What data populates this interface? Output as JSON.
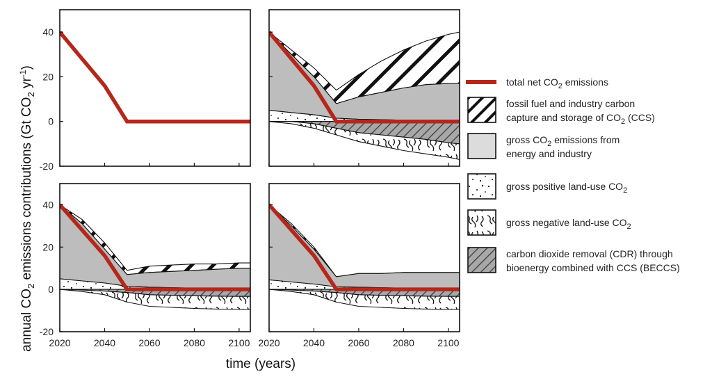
{
  "chart_data": {
    "type": "area",
    "xlabel": "time (years)",
    "ylabel": {
      "p1": "annual CO",
      "sub": "2",
      "p2": " emissions contributions (Gt CO",
      "sub2": "2",
      "p3": " yr",
      "sup": "-1",
      "p4": ")"
    },
    "xlim": [
      2020,
      2105
    ],
    "ylim": [
      -20,
      50
    ],
    "xticks": [
      "2020",
      "2040",
      "2060",
      "2080",
      "2100"
    ],
    "yticks": [
      "40",
      "20",
      "0",
      "-20"
    ],
    "colors": {
      "net": "#b5271b",
      "energy_fill": "#bdbdbd",
      "beccs_fill": "#a8a8a8",
      "white": "#ffffff"
    },
    "panels": [
      {
        "id": "top-left",
        "x": [
          2020,
          2030,
          2040,
          2050,
          2060,
          2070,
          2080,
          2090,
          2100,
          2105
        ],
        "net": [
          40,
          28,
          16,
          0,
          0,
          0,
          0,
          0,
          0,
          0
        ]
      },
      {
        "id": "top-right",
        "x": [
          2020,
          2030,
          2040,
          2050,
          2060,
          2070,
          2080,
          2090,
          2100,
          2105
        ],
        "gross_energy_top": [
          40,
          30,
          20,
          8,
          11,
          13,
          15,
          16.5,
          17,
          17
        ],
        "ccs_top": [
          40,
          32,
          24,
          14,
          21,
          27,
          32,
          36,
          39,
          40
        ],
        "land_pos_top": [
          5,
          4,
          3,
          1.5,
          1,
          0.8,
          0.6,
          0.5,
          0.4,
          0.4
        ],
        "beccs_bottom": [
          0,
          0,
          -1,
          -3,
          -5,
          -6,
          -7,
          -8,
          -9.5,
          -10
        ],
        "land_neg_bottom": [
          0,
          -1,
          -3,
          -6,
          -9,
          -11,
          -13,
          -14.5,
          -16,
          -17
        ],
        "net": [
          40,
          28,
          16,
          0,
          0,
          0,
          0,
          0,
          0,
          0
        ]
      },
      {
        "id": "bottom-left",
        "x": [
          2020,
          2030,
          2040,
          2050,
          2060,
          2070,
          2080,
          2090,
          2100,
          2105
        ],
        "gross_energy_top": [
          40,
          31,
          19,
          7,
          8,
          8.5,
          9,
          9.5,
          10,
          10
        ],
        "ccs_top": [
          40,
          33,
          22,
          9,
          11,
          11.5,
          12,
          12,
          12.5,
          12.5
        ],
        "land_pos_top": [
          5,
          4,
          3,
          1.5,
          1,
          0.8,
          0.6,
          0.5,
          0.4,
          0.4
        ],
        "beccs_bottom": [
          0,
          -0.3,
          -0.8,
          -1.5,
          -2.5,
          -2.8,
          -3,
          -3.2,
          -3.3,
          -3.3
        ],
        "land_neg_bottom": [
          0,
          -1,
          -2.5,
          -6,
          -8,
          -8.5,
          -9,
          -9.3,
          -9.5,
          -9.5
        ],
        "net": [
          40,
          28,
          16,
          0,
          0,
          0,
          0,
          0,
          0,
          0
        ]
      },
      {
        "id": "bottom-right",
        "x": [
          2020,
          2030,
          2040,
          2050,
          2060,
          2070,
          2080,
          2090,
          2100,
          2105
        ],
        "gross_energy_top": [
          40,
          30,
          19,
          6,
          7.5,
          7.5,
          8,
          8,
          8,
          8
        ],
        "ccs_top": [
          40,
          31,
          20,
          6,
          7.5,
          7.5,
          8,
          8,
          8,
          8
        ],
        "land_pos_top": [
          4.5,
          3.5,
          2.5,
          1.2,
          1,
          0.8,
          0.6,
          0.5,
          0.4,
          0.4
        ],
        "beccs_bottom": [
          0,
          -0.3,
          -0.8,
          -1.5,
          -2.5,
          -2.8,
          -3,
          -3.2,
          -3.3,
          -3.3
        ],
        "land_neg_bottom": [
          0,
          -1,
          -2.5,
          -6,
          -8,
          -8.5,
          -9,
          -9.3,
          -9.5,
          -9.5
        ],
        "net": [
          40,
          28,
          16,
          0,
          0,
          0,
          0,
          0,
          0,
          0
        ]
      }
    ]
  },
  "legend": [
    {
      "key": "net",
      "label1": "total net CO",
      "sub1": "2",
      "label1b": " emissions",
      "label2": "",
      "sub2": "",
      "label2b": ""
    },
    {
      "key": "ccs",
      "label1": "fossil fuel and industry carbon",
      "sub1": "",
      "label1b": "",
      "label2": "capture and storage of CO",
      "sub2": "2",
      "label2b": " (CCS)"
    },
    {
      "key": "energy",
      "label1": "gross CO",
      "sub1": "2",
      "label1b": " emissions from",
      "label2": "energy and industry",
      "sub2": "",
      "label2b": ""
    },
    {
      "key": "landpos",
      "label1": "gross positive land-use CO",
      "sub1": "2",
      "label1b": "",
      "label2": "",
      "sub2": "",
      "label2b": ""
    },
    {
      "key": "landneg",
      "label1": "gross negative land-use CO",
      "sub1": "2",
      "label1b": "",
      "label2": "",
      "sub2": "",
      "label2b": ""
    },
    {
      "key": "beccs",
      "label1": "carbon dioxide removal (CDR) through",
      "sub1": "",
      "label1b": "",
      "label2": "bioenergy combined with CCS (BECCS)",
      "sub2": "",
      "label2b": ""
    }
  ]
}
